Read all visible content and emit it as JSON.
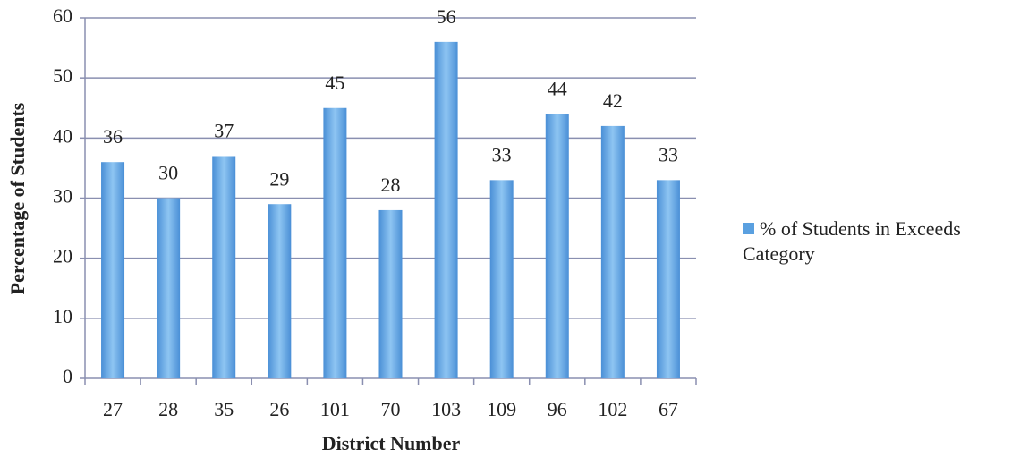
{
  "chart_data": {
    "type": "bar",
    "categories": [
      "27",
      "28",
      "35",
      "26",
      "101",
      "70",
      "103",
      "109",
      "96",
      "102",
      "67"
    ],
    "series": [
      {
        "name": "% of Students in Exceeds Category",
        "color": "#5aa0e0",
        "values": [
          36,
          30,
          37,
          29,
          45,
          28,
          56,
          33,
          44,
          42,
          33
        ]
      }
    ],
    "x_label": "District Number",
    "y_label": "Percentage of Students",
    "ylim": [
      0,
      60
    ],
    "yticks": [
      0,
      10,
      20,
      30,
      40,
      50,
      60
    ],
    "grid": true,
    "legend": "right"
  }
}
